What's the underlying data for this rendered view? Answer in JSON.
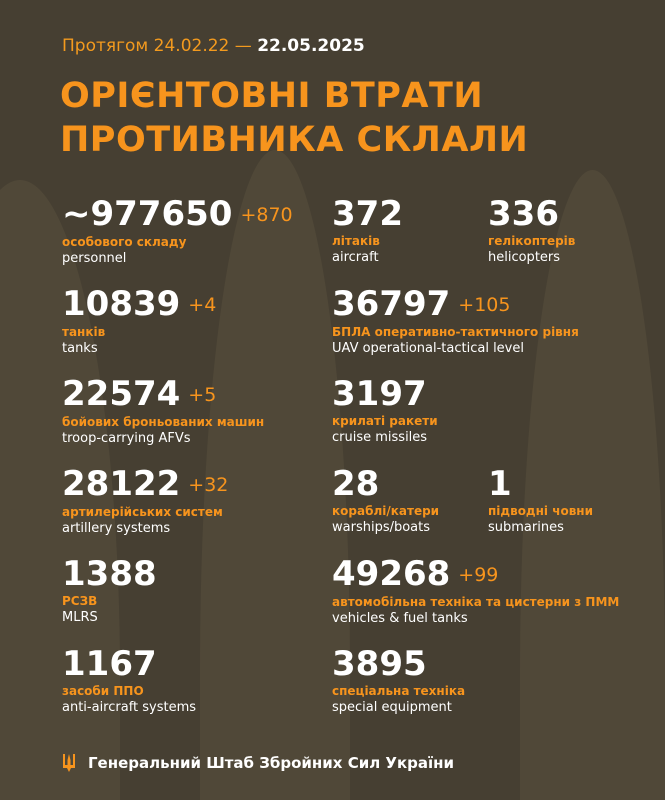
{
  "period": {
    "prefix": "Протягом 24.02.22 —",
    "date": "22.05.2025"
  },
  "title": {
    "line1": "ОРІЄНТОВНІ ВТРАТИ",
    "line2": "ПРОТИВНИКА СКЛАЛИ"
  },
  "items": [
    {
      "value": "~977650",
      "inc": "+870",
      "ua": "особового складу",
      "en": "personnel"
    },
    {
      "value": "372",
      "inc": "",
      "ua": "літаків",
      "en": "aircraft"
    },
    {
      "value": "336",
      "inc": "",
      "ua": "гелікоптерів",
      "en": "helicopters"
    },
    {
      "value": "10839",
      "inc": "+4",
      "ua": "танків",
      "en": "tanks"
    },
    {
      "value": "36797",
      "inc": "+105",
      "ua": "БПЛА оперативно-тактичного рівня",
      "en": "UAV operational-tactical level"
    },
    {
      "value": "22574",
      "inc": "+5",
      "ua": "бойових броньованих машин",
      "en": "troop-carrying AFVs"
    },
    {
      "value": "3197",
      "inc": "",
      "ua": "крилаті ракети",
      "en": "cruise missiles"
    },
    {
      "value": "28122",
      "inc": "+32",
      "ua": "артилерійських систем",
      "en": "artillery systems"
    },
    {
      "value": "28",
      "inc": "",
      "ua": "кораблі/катери",
      "en": "warships/boats"
    },
    {
      "value": "1",
      "inc": "",
      "ua": "підводні човни",
      "en": "submarines"
    },
    {
      "value": "1388",
      "inc": "",
      "ua": "РСЗВ",
      "en": "MLRS"
    },
    {
      "value": "49268",
      "inc": "+99",
      "ua": "автомобільна техніка та цистерни з ПММ",
      "en": "vehicles & fuel tanks"
    },
    {
      "value": "1167",
      "inc": "",
      "ua": "засоби ППО",
      "en": "anti-aircraft systems"
    },
    {
      "value": "3895",
      "inc": "",
      "ua": "спеціальна техніка",
      "en": "special equipment"
    }
  ],
  "footer": {
    "text": "Генеральний Штаб Збройних Сил України",
    "icon": "trident-icon"
  },
  "colors": {
    "accent": "#f7941d",
    "background": "#463f32",
    "text": "#ffffff"
  }
}
